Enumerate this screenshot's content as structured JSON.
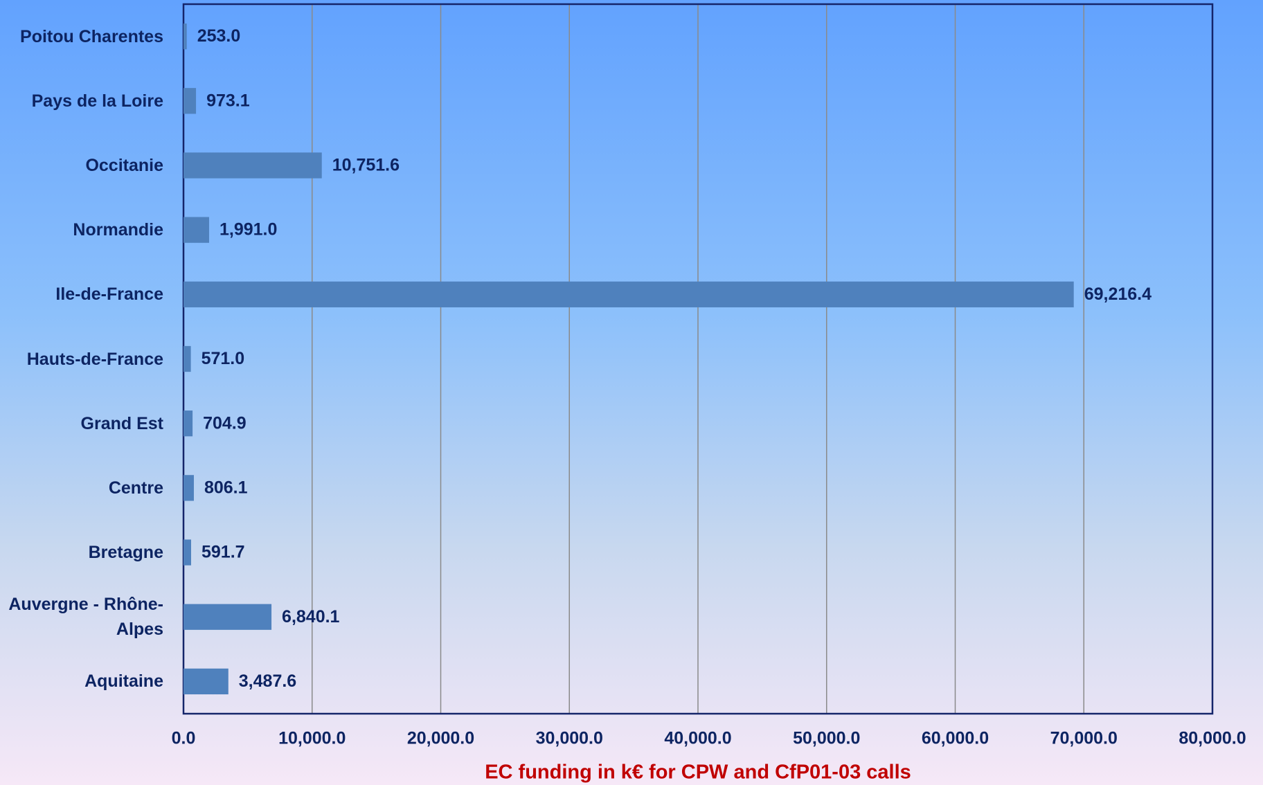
{
  "chart_data": {
    "type": "bar",
    "orientation": "horizontal",
    "x_axis_label": "EC funding  in k€ for CPW and CfP01-03 calls",
    "categories": [
      "Poitou Charentes",
      "Pays de la Loire",
      "Occitanie",
      "Normandie",
      "Ile-de-France",
      "Hauts-de-France",
      "Grand Est",
      "Centre",
      "Bretagne",
      "Auvergne - Rhône-Alpes",
      "Aquitaine"
    ],
    "values": [
      253.0,
      973.1,
      10751.6,
      1991.0,
      69216.4,
      571.0,
      704.9,
      806.1,
      591.7,
      6840.1,
      3487.6
    ],
    "value_labels": [
      "253.0",
      "973.1",
      "10,751.6",
      "1,991.0",
      "69,216.4",
      "571.0",
      "704.9",
      "806.1",
      "591.7",
      "6,840.1",
      "3,487.6"
    ],
    "color": "#4f81bd",
    "xlim": [
      0,
      80000
    ],
    "xticks": [
      {
        "value": 0,
        "label": "0.0"
      },
      {
        "value": 10000,
        "label": "10,000.0"
      },
      {
        "value": 20000,
        "label": "20,000.0"
      },
      {
        "value": 30000,
        "label": "30,000.0"
      },
      {
        "value": 40000,
        "label": "40,000.0"
      },
      {
        "value": 50000,
        "label": "50,000.0"
      },
      {
        "value": 60000,
        "label": "60,000.0"
      },
      {
        "value": 70000,
        "label": "70,000.0"
      },
      {
        "value": 80000,
        "label": "80,000.0"
      }
    ],
    "grid": true
  }
}
